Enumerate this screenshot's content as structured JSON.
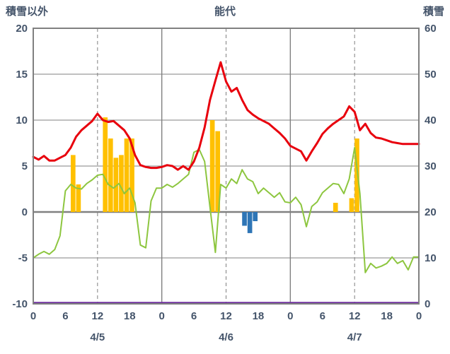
{
  "header": {
    "left": "積雪以外",
    "center": "能代",
    "right": "積雪"
  },
  "chart_data": {
    "type": "line",
    "title": "能代",
    "left_axis": {
      "title": "積雪以外",
      "min": -10,
      "max": 20,
      "ticks": [
        20,
        15,
        10,
        5,
        0,
        -5,
        -10
      ]
    },
    "right_axis": {
      "title": "積雪",
      "min": 0,
      "max": 60,
      "ticks": [
        60,
        50,
        40,
        30,
        20,
        10,
        0
      ]
    },
    "x_axis": {
      "hours_total": 72,
      "tick_step": 6,
      "tick_labels": [
        "0",
        "6",
        "12",
        "18",
        "0",
        "6",
        "12",
        "18",
        "0",
        "6",
        "12",
        "18",
        "0"
      ],
      "day_labels": [
        {
          "label": "4/5",
          "hour": 12
        },
        {
          "label": "4/6",
          "hour": 36
        },
        {
          "label": "4/7",
          "hour": 60
        }
      ],
      "solid_gridlines_hours": [
        24,
        48
      ],
      "dashed_gridlines_hours": [
        12,
        36,
        60
      ]
    },
    "grid_color": "#808080",
    "text_color": "#44546a",
    "series": [
      {
        "name": "green-line",
        "color": "#8dc63f",
        "width": 2,
        "axis": "left",
        "values": [
          -5.0,
          -4.6,
          -4.3,
          -4.6,
          -4.1,
          -2.6,
          2.3,
          3.0,
          2.6,
          2.5,
          3.1,
          3.5,
          4.0,
          4.1,
          3.0,
          2.6,
          3.1,
          2.0,
          2.6,
          1.0,
          -3.6,
          -3.9,
          1.2,
          2.6,
          2.6,
          3.0,
          2.7,
          3.1,
          3.6,
          4.1,
          6.5,
          6.8,
          5.5,
          0.5,
          -4.4,
          3.0,
          2.6,
          3.6,
          3.1,
          4.6,
          3.6,
          3.3,
          2.0,
          2.6,
          2.1,
          1.6,
          2.1,
          1.1,
          1.0,
          1.6,
          0.8,
          -1.6,
          0.6,
          1.1,
          2.1,
          2.6,
          3.1,
          3.0,
          2.0,
          3.6,
          7.0,
          2.0,
          -6.6,
          -5.6,
          -6.1,
          -5.9,
          -5.6,
          -4.9,
          -5.6,
          -5.3,
          -6.3,
          -4.9,
          -4.9
        ]
      },
      {
        "name": "red-line",
        "color": "#e8000d",
        "width": 3,
        "axis": "left",
        "values": [
          6.0,
          5.7,
          6.1,
          5.6,
          5.6,
          5.9,
          6.2,
          7.0,
          8.2,
          8.9,
          9.4,
          9.9,
          10.7,
          10.0,
          9.8,
          9.9,
          9.4,
          8.9,
          8.0,
          6.2,
          5.1,
          4.9,
          4.8,
          4.8,
          4.9,
          5.1,
          5.0,
          4.6,
          5.0,
          4.6,
          5.5,
          7.0,
          9.2,
          12.2,
          14.3,
          16.3,
          14.2,
          13.1,
          13.5,
          12.2,
          11.1,
          10.6,
          10.2,
          9.9,
          9.6,
          9.1,
          8.6,
          8.0,
          7.2,
          6.9,
          6.6,
          5.6,
          6.6,
          7.5,
          8.5,
          9.1,
          9.6,
          10.0,
          10.4,
          11.5,
          10.9,
          8.9,
          9.6,
          8.6,
          8.1,
          8.0,
          7.8,
          7.6,
          7.5,
          7.4,
          7.4,
          7.4,
          7.4
        ]
      }
    ],
    "bars": [
      {
        "name": "orange-bars",
        "color": "#ffc000",
        "axis": "left",
        "points": [
          {
            "hour": 7,
            "value": 6.2
          },
          {
            "hour": 8,
            "value": 3.0
          },
          {
            "hour": 13,
            "value": 10.3
          },
          {
            "hour": 14,
            "value": 8.0
          },
          {
            "hour": 15,
            "value": 5.9
          },
          {
            "hour": 16,
            "value": 6.2
          },
          {
            "hour": 17,
            "value": 8.0
          },
          {
            "hour": 18,
            "value": 8.0
          },
          {
            "hour": 33,
            "value": 10.0
          },
          {
            "hour": 34,
            "value": 8.8
          },
          {
            "hour": 56,
            "value": 1.0
          },
          {
            "hour": 59,
            "value": 1.5
          },
          {
            "hour": 60,
            "value": 8.0
          }
        ]
      },
      {
        "name": "blue-bars",
        "color": "#2e75b6",
        "axis": "left",
        "points": [
          {
            "hour": 39,
            "value": -1.5
          },
          {
            "hour": 40,
            "value": -2.3
          },
          {
            "hour": 41,
            "value": -1.0
          }
        ]
      }
    ],
    "flat_line": {
      "name": "snow-depth-line",
      "color": "#7030a0",
      "axis": "right",
      "value": 0,
      "width": 2.5
    }
  }
}
